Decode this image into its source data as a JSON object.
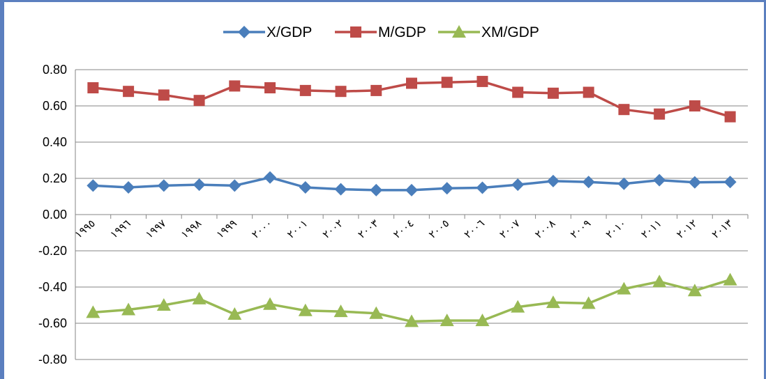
{
  "chart_data": {
    "type": "line",
    "title": "",
    "xlabel": "",
    "ylabel": "",
    "ylim": [
      -0.8,
      0.8
    ],
    "yticks": [
      "0.80",
      "0.60",
      "0.40",
      "0.20",
      "0.00",
      "-0.20",
      "-0.40",
      "-0.60",
      "-0.80"
    ],
    "grid": true,
    "legend_position": "top",
    "categories": [
      "١٩٩٥",
      "١٩٩٦",
      "١٩٩٧",
      "١٩٩٨",
      "١٩٩٩",
      "٢٠٠٠",
      "٢٠٠١",
      "٢٠٠٢",
      "٢٠٠٣",
      "٢٠٠٤",
      "٢٠٠٥",
      "٢٠٠٦",
      "٢٠٠٧",
      "٢٠٠٨",
      "٢٠٠٩",
      "٢٠١٠",
      "٢٠١١",
      "٢٠١٢",
      "٢٠١٣"
    ],
    "series": [
      {
        "name": "X/GDP",
        "color": "#4a7ebb",
        "marker": "diamond",
        "values": [
          0.16,
          0.15,
          0.16,
          0.165,
          0.16,
          0.205,
          0.15,
          0.14,
          0.135,
          0.135,
          0.145,
          0.148,
          0.165,
          0.185,
          0.18,
          0.17,
          0.19,
          0.178,
          0.18
        ]
      },
      {
        "name": "M/GDP",
        "color": "#be4b48",
        "marker": "square",
        "values": [
          0.7,
          0.68,
          0.66,
          0.63,
          0.71,
          0.7,
          0.685,
          0.68,
          0.685,
          0.725,
          0.73,
          0.735,
          0.675,
          0.67,
          0.675,
          0.58,
          0.555,
          0.6,
          0.54
        ]
      },
      {
        "name": "XM/GDP",
        "color": "#98b954",
        "marker": "triangle",
        "values": [
          -0.54,
          -0.525,
          -0.5,
          -0.465,
          -0.55,
          -0.495,
          -0.53,
          -0.535,
          -0.545,
          -0.59,
          -0.585,
          -0.585,
          -0.51,
          -0.485,
          -0.49,
          -0.41,
          -0.37,
          -0.42,
          -0.36
        ]
      }
    ]
  }
}
